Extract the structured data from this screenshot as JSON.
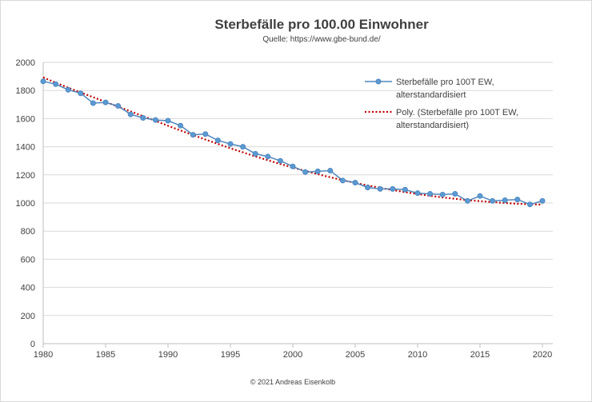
{
  "chart_data": {
    "type": "line",
    "title": "Sterbefälle pro 100.00 Einwohner",
    "subtitle": "Quelle: https://www.gbe-bund.de/",
    "footer": "© 2021 Andreas Eisenkolb",
    "xlim": [
      1980,
      2020
    ],
    "ylim": [
      0,
      2000
    ],
    "x_ticks": [
      1980,
      1985,
      1990,
      1995,
      2000,
      2005,
      2010,
      2015,
      2020
    ],
    "y_ticks": [
      0,
      200,
      400,
      600,
      800,
      1000,
      1200,
      1400,
      1600,
      1800,
      2000
    ],
    "grid": true,
    "legend_position": "top-right",
    "x": [
      1980,
      1981,
      1982,
      1983,
      1984,
      1985,
      1986,
      1987,
      1988,
      1989,
      1990,
      1991,
      1992,
      1993,
      1994,
      1995,
      1996,
      1997,
      1998,
      1999,
      2000,
      2001,
      2002,
      2003,
      2004,
      2005,
      2006,
      2007,
      2008,
      2009,
      2010,
      2011,
      2012,
      2013,
      2014,
      2015,
      2016,
      2017,
      2018,
      2019,
      2020
    ],
    "series": [
      {
        "name_line1": "Sterbefälle pro 100T EW,",
        "name_line2": "alterstandardisiert",
        "color": "#4f87bd",
        "marker_color": "#5b9bd5",
        "values": [
          1865,
          1845,
          1805,
          1780,
          1710,
          1715,
          1690,
          1630,
          1605,
          1590,
          1585,
          1550,
          1485,
          1490,
          1445,
          1420,
          1400,
          1350,
          1330,
          1300,
          1260,
          1220,
          1225,
          1230,
          1160,
          1145,
          1110,
          1100,
          1100,
          1095,
          1070,
          1065,
          1060,
          1065,
          1015,
          1050,
          1015,
          1020,
          1025,
          990,
          1015
        ]
      },
      {
        "name_line1": "Poly. (Sterbefälle pro 100T EW,",
        "name_line2": "alterstandardisiert)",
        "color": "#c00000",
        "style": "dotted",
        "kind": "trendline-polynomial",
        "values": [
          1893,
          1855,
          1820,
          1785,
          1752,
          1718,
          1685,
          1651,
          1617,
          1584,
          1549,
          1516,
          1483,
          1451,
          1420,
          1389,
          1360,
          1331,
          1304,
          1277,
          1252,
          1228,
          1205,
          1183,
          1162,
          1143,
          1125,
          1108,
          1092,
          1077,
          1064,
          1051,
          1040,
          1030,
          1021,
          1013,
          1006,
          1000,
          995,
          991,
          988
        ]
      }
    ]
  }
}
